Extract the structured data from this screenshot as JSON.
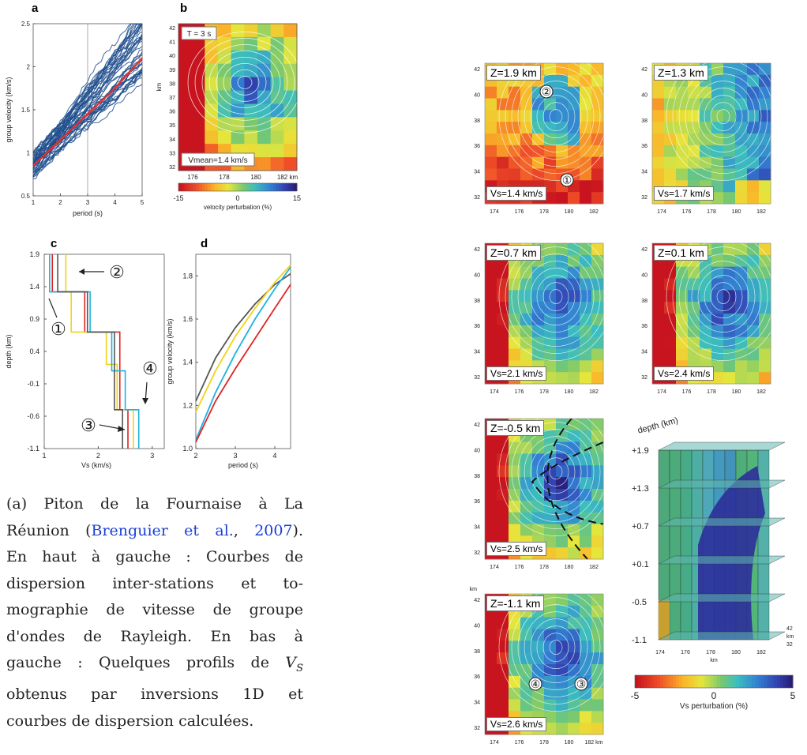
{
  "panel_a": {
    "label": "a",
    "chart_data": {
      "type": "line",
      "xlabel": "period (s)",
      "ylabel": "group velocity (km/s)",
      "xlim": [
        1,
        5
      ],
      "ylim": [
        0.5,
        2.5
      ],
      "x_ticks": [
        "1",
        "2",
        "3",
        "4",
        "5"
      ],
      "y_ticks": [
        "0.5",
        "1",
        "1.5",
        "2",
        "2.5"
      ],
      "vertical_line_x": 3,
      "mean_curve": {
        "x": [
          1,
          2,
          3,
          4,
          5
        ],
        "y": [
          0.85,
          1.15,
          1.45,
          1.75,
          2.1
        ]
      },
      "curve_colors": {
        "individual": "#1f4e8c",
        "mean": "#e33030"
      }
    }
  },
  "panel_b": {
    "label": "b",
    "period": "T = 3 s",
    "vmean": "Vmean=1.4 km/s",
    "y_ticks": [
      "42",
      "41",
      "40",
      "39",
      "38",
      "37",
      "36",
      "35",
      "34",
      "33",
      "32"
    ],
    "ylabel": "km",
    "x_ticks": [
      "176",
      "178",
      "180",
      "182 km"
    ],
    "colorbar_ticks": [
      "-15",
      "0",
      "15"
    ],
    "colorbar_label": "velocity perturbation (%)"
  },
  "panel_c": {
    "label": "c",
    "chart_data": {
      "type": "line",
      "xlabel": "Vs (km/s)",
      "ylabel": "depth (km)",
      "x_ticks": [
        "1",
        "2",
        "3"
      ],
      "y_ticks": [
        "1.9",
        "1.4",
        "0.9",
        "0.4",
        "-0.1",
        "-0.6",
        "-1.1"
      ],
      "series_colors": [
        "#e02424",
        "#f2d21a",
        "#1fb2e0",
        "#555555"
      ]
    },
    "markers": [
      "①",
      "②",
      "③",
      "④"
    ]
  },
  "panel_d": {
    "label": "d",
    "chart_data": {
      "type": "line",
      "xlabel": "period (s)",
      "ylabel": "group velocity (km/s)",
      "x_ticks": [
        "2",
        "3",
        "4"
      ],
      "y_ticks": [
        "1.0",
        "1.2",
        "1.4",
        "1.6",
        "1.8"
      ],
      "xlim": [
        2,
        4.4
      ],
      "ylim": [
        1.0,
        1.9
      ],
      "series": [
        {
          "color": "#555555",
          "x": [
            2,
            2.5,
            3,
            3.5,
            4,
            4.4
          ],
          "y": [
            1.22,
            1.42,
            1.56,
            1.67,
            1.76,
            1.81
          ]
        },
        {
          "color": "#f2d21a",
          "x": [
            2,
            2.5,
            3,
            3.5,
            4,
            4.4
          ],
          "y": [
            1.17,
            1.36,
            1.52,
            1.65,
            1.77,
            1.85
          ]
        },
        {
          "color": "#1fb2e0",
          "x": [
            2,
            2.5,
            3,
            3.5,
            4,
            4.4
          ],
          "y": [
            1.04,
            1.26,
            1.44,
            1.6,
            1.74,
            1.84
          ]
        },
        {
          "color": "#e02424",
          "x": [
            2,
            2.5,
            3,
            3.5,
            4,
            4.4
          ],
          "y": [
            1.03,
            1.22,
            1.37,
            1.51,
            1.65,
            1.76
          ]
        }
      ]
    }
  },
  "caption": {
    "prefix": "(a) Piton de la Fournaise à La",
    "line2_pre": "Réunion (",
    "cite_author": "Brenguier et al.",
    "cite_sep": ", ",
    "cite_year": "2007",
    "line2_post": ").",
    "line3": "En haut à gauche : Courbes de",
    "line4": "dispersion inter-stations et to-",
    "line5": "mographie de vitesse de groupe",
    "line6": "d'ondes de Rayleigh. En bas à",
    "line7_pre": "gauche : Quelques profils de ",
    "line7_var": "V",
    "line7_sub": "S",
    "line8": "obtenus par inversions 1D et",
    "line9": "courbes de dispersion calculées."
  },
  "maps": [
    {
      "z": "Z=1.9 km",
      "vs": "Vs=1.4 km/s",
      "markers": [
        "②",
        "①"
      ]
    },
    {
      "z": "Z=1.3 km",
      "vs": "Vs=1.7 km/s"
    },
    {
      "z": "Z=0.7 km",
      "vs": "Vs=2.1 km/s"
    },
    {
      "z": "Z=0.1 km",
      "vs": "Vs=2.4 km/s"
    },
    {
      "z": "Z=-0.5 km",
      "vs": "Vs=2.5 km/s"
    },
    {
      "z": "Z=-1.1 km",
      "vs": "Vs=2.6 km/s",
      "markers": [
        "④",
        "③"
      ],
      "y_unit": "km"
    }
  ],
  "map_axes": {
    "y_ticks": [
      "42",
      "40",
      "38",
      "36",
      "34",
      "32"
    ],
    "x_ticks": [
      "174",
      "176",
      "178",
      "180",
      "182"
    ],
    "x_ticks_last": [
      "174",
      "176",
      "178",
      "180",
      "182 km"
    ]
  },
  "block3d": {
    "depth_label": "depth (km)",
    "depths": [
      "+1.9",
      "+1.3",
      "+0.7",
      "+0.1",
      "-0.5",
      "-1.1"
    ],
    "x_ticks": [
      "174",
      "176",
      "178",
      "180",
      "182"
    ],
    "x_unit": "km",
    "side_ticks": [
      "42",
      "km",
      "32"
    ]
  },
  "colorbar_right": {
    "ticks": [
      "-5",
      "0",
      "5"
    ],
    "label": "Vs perturbation (%)"
  }
}
